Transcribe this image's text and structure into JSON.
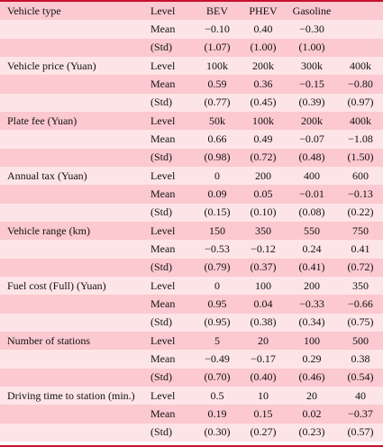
{
  "row_labels": [
    "Level",
    "Mean",
    "(Std)"
  ],
  "attributes": [
    {
      "name": "Vehicle type",
      "levels": [
        "BEV",
        "PHEV",
        "Gasoline"
      ],
      "mean": [
        "−0.10",
        "0.40",
        "−0.30"
      ],
      "std": [
        "(1.07)",
        "(1.00)",
        "(1.00)"
      ]
    },
    {
      "name": "Vehicle price (Yuan)",
      "levels": [
        "100k",
        "200k",
        "300k",
        "400k"
      ],
      "mean": [
        "0.59",
        "0.36",
        "−0.15",
        "−0.80"
      ],
      "std": [
        "(0.77)",
        "(0.45)",
        "(0.39)",
        "(0.97)"
      ]
    },
    {
      "name": "Plate fee (Yuan)",
      "levels": [
        "50k",
        "100k",
        "200k",
        "400k"
      ],
      "mean": [
        "0.66",
        "0.49",
        "−0.07",
        "−1.08"
      ],
      "std": [
        "(0.98)",
        "(0.72)",
        "(0.48)",
        "(1.50)"
      ]
    },
    {
      "name": "Annual tax (Yuan)",
      "levels": [
        "0",
        "200",
        "400",
        "600"
      ],
      "mean": [
        "0.09",
        "0.05",
        "−0.01",
        "−0.13"
      ],
      "std": [
        "(0.15)",
        "(0.10)",
        "(0.08)",
        "(0.22)"
      ]
    },
    {
      "name": "Vehicle range (km)",
      "levels": [
        "150",
        "350",
        "550",
        "750"
      ],
      "mean": [
        "−0.53",
        "−0.12",
        "0.24",
        "0.41"
      ],
      "std": [
        "(0.79)",
        "(0.37)",
        "(0.41)",
        "(0.72)"
      ]
    },
    {
      "name": "Fuel cost (Full) (Yuan)",
      "levels": [
        "0",
        "100",
        "200",
        "350"
      ],
      "mean": [
        "0.95",
        "0.04",
        "−0.33",
        "−0.66"
      ],
      "std": [
        "(0.95)",
        "(0.38)",
        "(0.34)",
        "(0.75)"
      ]
    },
    {
      "name": "Number of stations",
      "levels": [
        "5",
        "20",
        "100",
        "500"
      ],
      "mean": [
        "−0.49",
        "−0.17",
        "0.29",
        "0.38"
      ],
      "std": [
        "(0.70)",
        "(0.40)",
        "(0.46)",
        "(0.54)"
      ]
    },
    {
      "name": "Driving time to station (min.)",
      "levels": [
        "0.5",
        "10",
        "20",
        "40"
      ],
      "mean": [
        "0.19",
        "0.15",
        "0.02",
        "−0.37"
      ],
      "std": [
        "(0.30)",
        "(0.27)",
        "(0.23)",
        "(0.57)"
      ]
    }
  ]
}
